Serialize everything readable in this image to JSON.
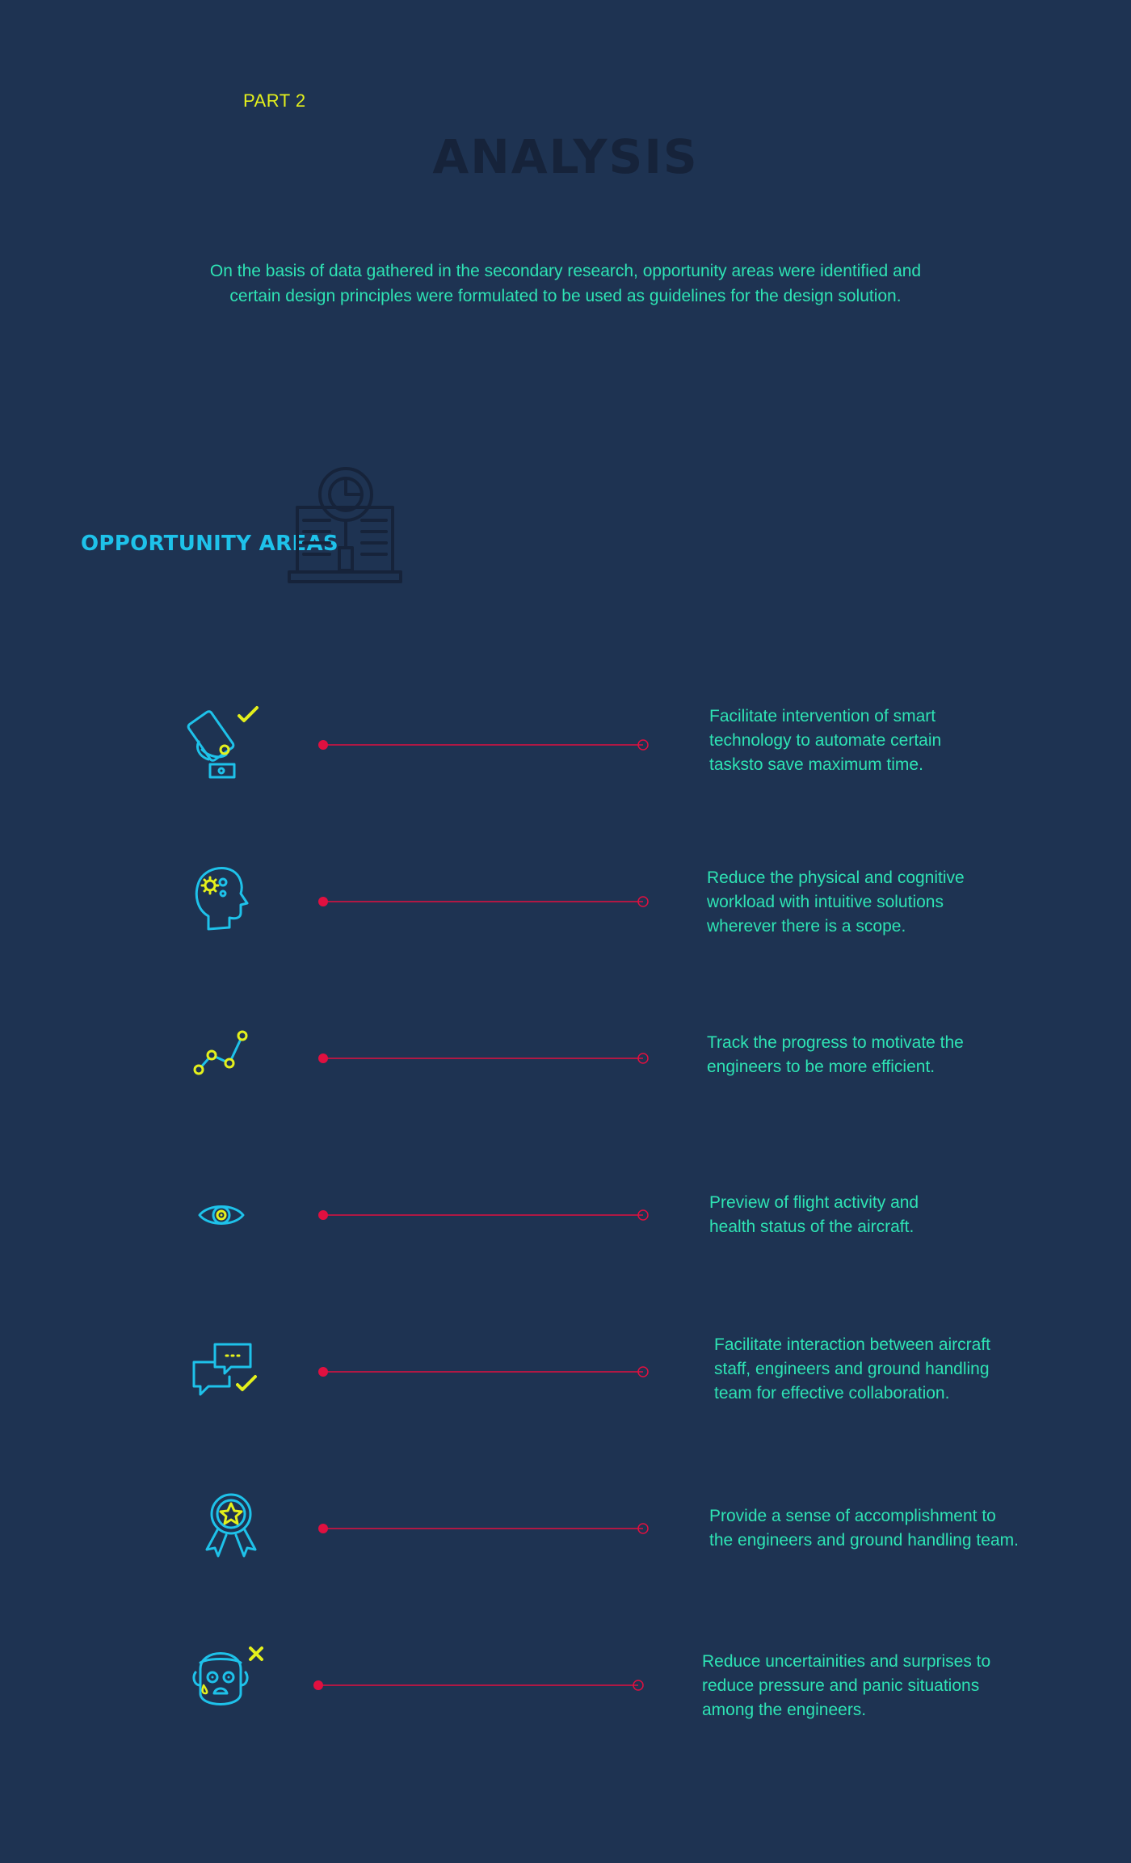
{
  "header": {
    "part_label": "PART 2",
    "title": "ANALYSIS",
    "intro_line1": "On the basis of data gathered in the secondary research, opportunity areas were identified and",
    "intro_line2": "certain design principles were formulated to be used as guidelines for the design solution."
  },
  "section": {
    "heading": "OPPORTUNITY AREAS",
    "icon": "analytics-laptop-icon"
  },
  "colors": {
    "background": "#1e3352",
    "accent_yellow": "#e4f01c",
    "accent_cyan": "#1ec2ea",
    "text_green": "#2ee3b4",
    "connector_red": "#e01040",
    "title_dark": "#16233a"
  },
  "opportunities": [
    {
      "icon": "phone-check-icon",
      "lines": [
        "Facilitate intervention of smart",
        "technology to automate certain",
        "tasksto save maximum time."
      ]
    },
    {
      "icon": "head-gears-icon",
      "lines": [
        "Reduce the physical and cognitive",
        "workload with intuitive solutions",
        "wherever there is a scope."
      ]
    },
    {
      "icon": "progress-graph-icon",
      "lines": [
        "Track the progress to motivate the",
        "engineers to be more efficient."
      ]
    },
    {
      "icon": "eye-icon",
      "lines": [
        "Preview of flight activity and",
        "health status of the aircraft."
      ]
    },
    {
      "icon": "chat-bubbles-check-icon",
      "lines": [
        "Facilitate interaction between aircraft",
        "staff, engineers and ground handling",
        "team for effective collaboration."
      ]
    },
    {
      "icon": "award-ribbon-icon",
      "lines": [
        "Provide a sense of accomplishment to",
        "the engineers and ground handling team."
      ]
    },
    {
      "icon": "worried-face-icon",
      "lines": [
        "Reduce uncertainities and surprises to",
        "reduce pressure and panic situations",
        "among the engineers."
      ]
    }
  ]
}
